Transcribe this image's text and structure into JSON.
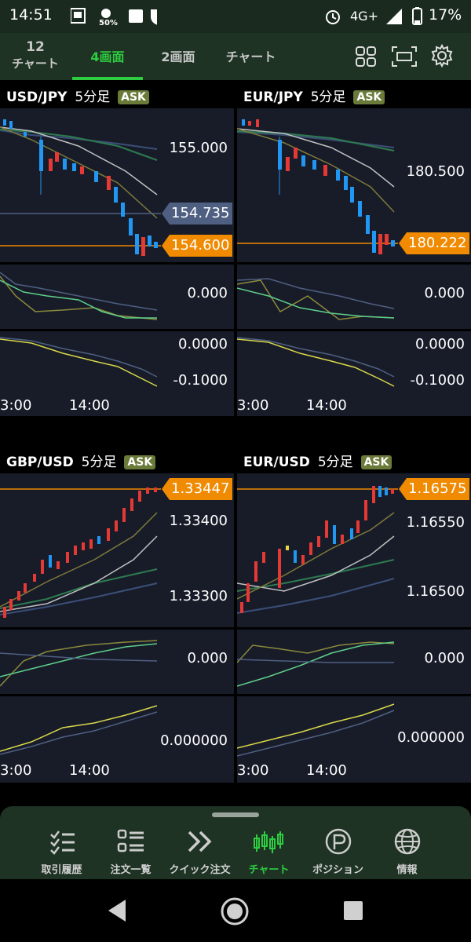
{
  "status_bar": {
    "time": "14:51",
    "battery_saver": "50%",
    "network": "4G+",
    "battery": "17%"
  },
  "top_tabs": {
    "items": [
      {
        "top": "12",
        "label": "チャート"
      },
      {
        "label": "4画面"
      },
      {
        "label": "2画面"
      },
      {
        "label": "チャート"
      }
    ],
    "active": "4画面"
  },
  "panels": [
    {
      "pair": "USD/JPY",
      "timeframe": "5分足",
      "ask": "ASK",
      "price_labels": [
        "155.000"
      ],
      "tags": [
        {
          "value": "154.735",
          "color": "#4f5f82"
        },
        {
          "value": "154.600",
          "color": "#f08a00"
        }
      ],
      "ind1_label": "0.000",
      "ind2_labels": [
        "0.0000",
        "-0.1000"
      ],
      "times": [
        "3:00",
        "14:00"
      ]
    },
    {
      "pair": "EUR/JPY",
      "timeframe": "5分足",
      "ask": "ASK",
      "price_labels": [
        "180.500"
      ],
      "tags": [
        {
          "value": "180.222",
          "color": "#f08a00"
        }
      ],
      "ind1_label": "0.000",
      "ind2_labels": [
        "0.0000",
        "-0.1000"
      ],
      "times": [
        "3:00",
        "14:00"
      ]
    },
    {
      "pair": "GBP/USD",
      "timeframe": "5分足",
      "ask": "ASK",
      "price_labels": [
        "1.33400",
        "1.33300"
      ],
      "tags": [
        {
          "value": "1.33447",
          "color": "#f08a00"
        }
      ],
      "ind1_label": "0.000",
      "ind2_labels": [
        "0.000000"
      ],
      "times": [
        "3:00",
        "14:00"
      ]
    },
    {
      "pair": "EUR/USD",
      "timeframe": "5分足",
      "ask": "ASK",
      "price_labels": [
        "1.16550",
        "1.16500"
      ],
      "tags": [
        {
          "value": "1.16575",
          "color": "#f08a00"
        }
      ],
      "ind1_label": "0.000",
      "ind2_labels": [
        "0.000000"
      ],
      "times": [
        "3:00",
        "14:00"
      ]
    }
  ],
  "bottom_nav": {
    "items": [
      {
        "label": "取引履歴",
        "icon": "trade-history-icon"
      },
      {
        "label": "注文一覧",
        "icon": "order-list-icon"
      },
      {
        "label": "クイック注文",
        "icon": "quick-order-icon"
      },
      {
        "label": "チャート",
        "icon": "chart-icon"
      },
      {
        "label": "ポジション",
        "icon": "position-icon"
      },
      {
        "label": "情報",
        "icon": "info-globe-icon"
      }
    ],
    "active": "チャート"
  },
  "colors": {
    "accent_green": "#2ecc40",
    "tag_orange": "#f08a00",
    "ask_badge": "#6a7a39",
    "candle_up": "#e53935",
    "candle_down": "#2196f3"
  }
}
